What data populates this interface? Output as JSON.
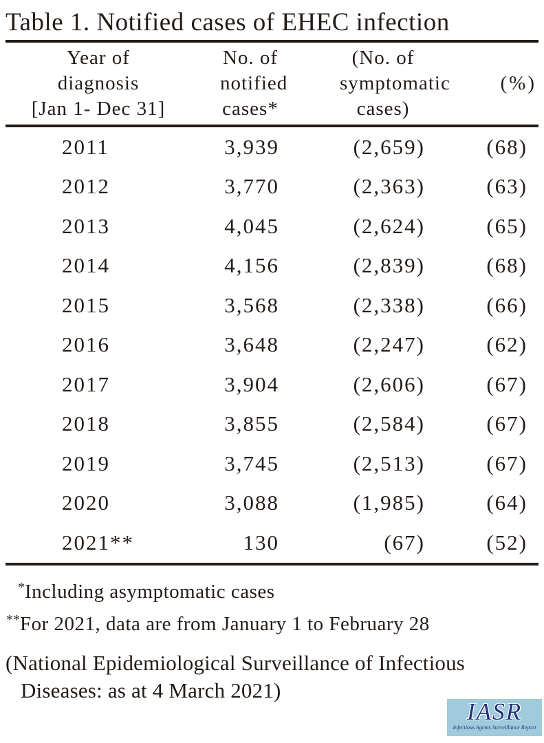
{
  "title": "Table 1. Notified cases of EHEC infection",
  "table": {
    "columns": {
      "year": "Year of diagnosis\n[Jan 1- Dec 31]",
      "notified": "No. of\nnotified\ncases*",
      "symptomatic": "(No. of\nsymptomatic\ncases)",
      "percent": "(%)"
    },
    "rows": [
      {
        "year": "2011",
        "notified": "3,939",
        "symptomatic": "(2,659)",
        "percent": "(68)"
      },
      {
        "year": "2012",
        "notified": "3,770",
        "symptomatic": "(2,363)",
        "percent": "(63)"
      },
      {
        "year": "2013",
        "notified": "4,045",
        "symptomatic": "(2,624)",
        "percent": "(65)"
      },
      {
        "year": "2014",
        "notified": "4,156",
        "symptomatic": "(2,839)",
        "percent": "(68)"
      },
      {
        "year": "2015",
        "notified": "3,568",
        "symptomatic": "(2,338)",
        "percent": "(66)"
      },
      {
        "year": "2016",
        "notified": "3,648",
        "symptomatic": "(2,247)",
        "percent": "(62)"
      },
      {
        "year": "2017",
        "notified": "3,904",
        "symptomatic": "(2,606)",
        "percent": "(67)"
      },
      {
        "year": "2018",
        "notified": "3,855",
        "symptomatic": "(2,584)",
        "percent": "(67)"
      },
      {
        "year": "2019",
        "notified": "3,745",
        "symptomatic": "(2,513)",
        "percent": "(67)"
      },
      {
        "year": "2020",
        "notified": "3,088",
        "symptomatic": "(1,985)",
        "percent": "(64)"
      },
      {
        "year": "2021**",
        "notified": "130",
        "symptomatic": "(67)",
        "percent": "(52)"
      }
    ]
  },
  "footnotes": [
    {
      "marker": "*",
      "text": "Including asymptomatic cases"
    },
    {
      "marker": "**",
      "text": "For 2021, data are from January 1 to February 28"
    }
  ],
  "source": {
    "line1": "(National Epidemiological Surveillance of Infectious",
    "line2": "Diseases: as at 4 March 2021)"
  },
  "logo": {
    "acronym": "IASR",
    "subtitle": "Infectious Agents Surveillance Report",
    "bg_color": "#a0cbdc",
    "text_color": "#23307c"
  },
  "colors": {
    "ink": "#241c18",
    "background": "#ffffff"
  }
}
